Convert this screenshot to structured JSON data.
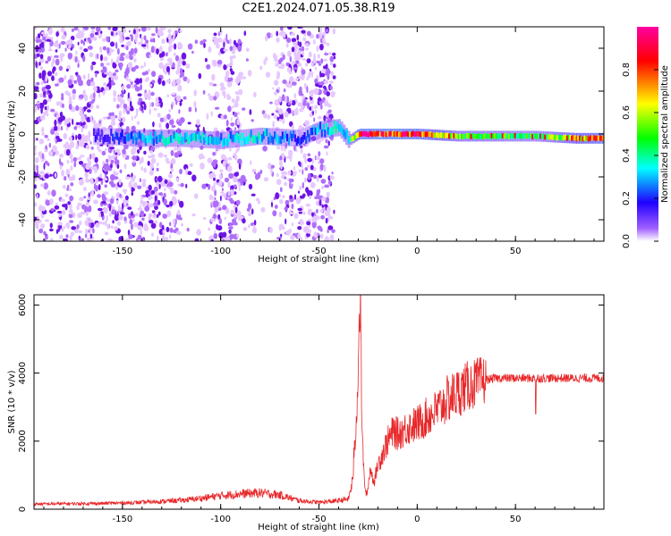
{
  "title": "C2E1.2024.071.05.38.R19",
  "chart_data": [
    {
      "type": "heatmap",
      "xlabel": "Height of straight line (km)",
      "ylabel": "Frequency (Hz)",
      "xlim": [
        -195,
        95
      ],
      "ylim": [
        -50,
        50
      ],
      "x_ticks": [
        -150,
        -100,
        -50,
        0,
        50
      ],
      "y_ticks": [
        -40,
        -20,
        0,
        20,
        40
      ],
      "colorbar": {
        "label": "Normalized spectral amplitude",
        "range": [
          0,
          1
        ],
        "ticks": [
          "0.0",
          "0.2",
          "0.4",
          "0.6",
          "0.8"
        ],
        "colors": [
          "#ffffff",
          "#8000ff",
          "#0000ff",
          "#00ffff",
          "#00ff00",
          "#ffff00",
          "#ff0000",
          "#ff00a0"
        ]
      },
      "noise_region_x": [
        -195,
        -42
      ],
      "ridge": {
        "x": [
          -160,
          -140,
          -120,
          -100,
          -80,
          -60,
          -50,
          -40,
          -35,
          -30,
          -20,
          0,
          20,
          40,
          60,
          80,
          95
        ],
        "frequency": [
          -1,
          -2,
          -2,
          -3,
          -1,
          -2,
          2,
          3,
          -3,
          0,
          0,
          0,
          -1,
          -1,
          -1,
          -2,
          -2
        ],
        "amplitude": [
          0.15,
          0.3,
          0.35,
          0.3,
          0.35,
          0.2,
          0.3,
          0.35,
          0.4,
          0.85,
          0.9,
          0.85,
          0.55,
          0.5,
          0.45,
          0.7,
          0.85
        ]
      }
    },
    {
      "type": "line",
      "xlabel": "Height of straight line (km)",
      "ylabel": "SNR (10 * v/v)",
      "xlim": [
        -195,
        95
      ],
      "ylim": [
        0,
        6300
      ],
      "x_ticks": [
        -150,
        -100,
        -50,
        0,
        50
      ],
      "y_ticks": [
        0,
        2000,
        4000,
        6000
      ],
      "color": "#e8282a",
      "series": [
        {
          "x": [
            -195,
            -180,
            -160,
            -140,
            -120,
            -110,
            -100,
            -90,
            -80,
            -70,
            -60,
            -50,
            -40,
            -35,
            -33,
            -31,
            -30,
            -29,
            -28,
            -27,
            -26,
            -25,
            -24,
            -22,
            -20,
            -18,
            -15,
            -12,
            -10,
            -5,
            0,
            5,
            10,
            15,
            20,
            25,
            30,
            35,
            40,
            50,
            60,
            70,
            80,
            90,
            95
          ],
          "y": [
            150,
            160,
            170,
            200,
            260,
            320,
            400,
            450,
            480,
            420,
            250,
            200,
            250,
            300,
            800,
            2500,
            4500,
            6300,
            2200,
            900,
            400,
            600,
            1200,
            800,
            1300,
            1600,
            2000,
            2300,
            2200,
            2400,
            2500,
            2700,
            2900,
            3200,
            3400,
            3600,
            3700,
            3800,
            3850,
            3850,
            3850,
            3850,
            3850,
            3850,
            3850
          ]
        }
      ]
    }
  ]
}
